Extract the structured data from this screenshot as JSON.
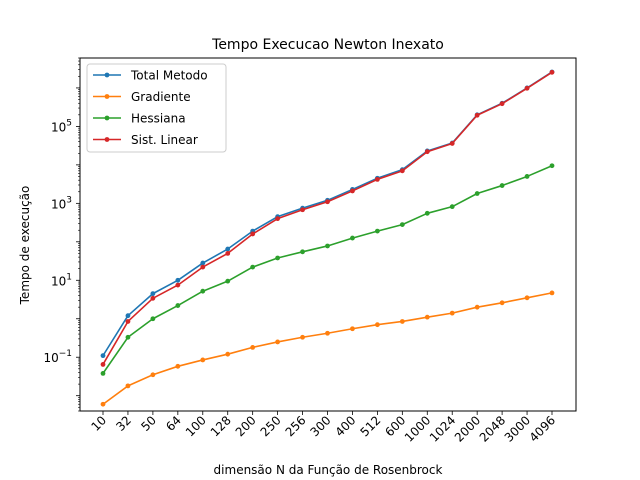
{
  "chart_data": {
    "type": "line",
    "title": "Tempo Execucao Newton Inexato",
    "xlabel": "dimensão N da Função de Rosenbrock",
    "ylabel": "Tempo de execução",
    "yscale": "log",
    "ylim": [
      0.004,
      6000000
    ],
    "y_ticks": [
      {
        "value": 0.1,
        "base": "10",
        "exp": "−1"
      },
      {
        "value": 10,
        "base": "10",
        "exp": "1"
      },
      {
        "value": 1000,
        "base": "10",
        "exp": "3"
      },
      {
        "value": 100000,
        "base": "10",
        "exp": "5"
      }
    ],
    "categories": [
      "10",
      "32",
      "50",
      "64",
      "100",
      "128",
      "200",
      "250",
      "256",
      "300",
      "400",
      "512",
      "600",
      "1000",
      "1024",
      "2000",
      "2048",
      "3000",
      "4096"
    ],
    "legend_position": "upper-left",
    "series": [
      {
        "name": "Total Metodo",
        "color": "#1f77b4",
        "values": [
          0.11,
          1.2,
          4.5,
          10,
          28,
          65,
          190,
          450,
          750,
          1200,
          2300,
          4500,
          7500,
          23000,
          37000,
          200000,
          400000,
          1000000,
          2600000
        ]
      },
      {
        "name": "Gradiente",
        "color": "#ff7f0e",
        "values": [
          0.006,
          0.018,
          0.035,
          0.058,
          0.085,
          0.12,
          0.18,
          0.25,
          0.33,
          0.42,
          0.55,
          0.7,
          0.85,
          1.1,
          1.4,
          2.0,
          2.6,
          3.5,
          4.7
        ]
      },
      {
        "name": "Hessiana",
        "color": "#2ca02c",
        "values": [
          0.038,
          0.33,
          1.0,
          2.2,
          5.2,
          9.5,
          22,
          38,
          55,
          78,
          125,
          190,
          280,
          550,
          820,
          1800,
          2900,
          5000,
          9500
        ]
      },
      {
        "name": "Sist. Linear",
        "color": "#d62728",
        "values": [
          0.065,
          0.85,
          3.4,
          7.5,
          22,
          50,
          160,
          400,
          680,
          1100,
          2100,
          4200,
          7000,
          22000,
          36000,
          195000,
          390000,
          980000,
          2550000
        ]
      }
    ]
  }
}
